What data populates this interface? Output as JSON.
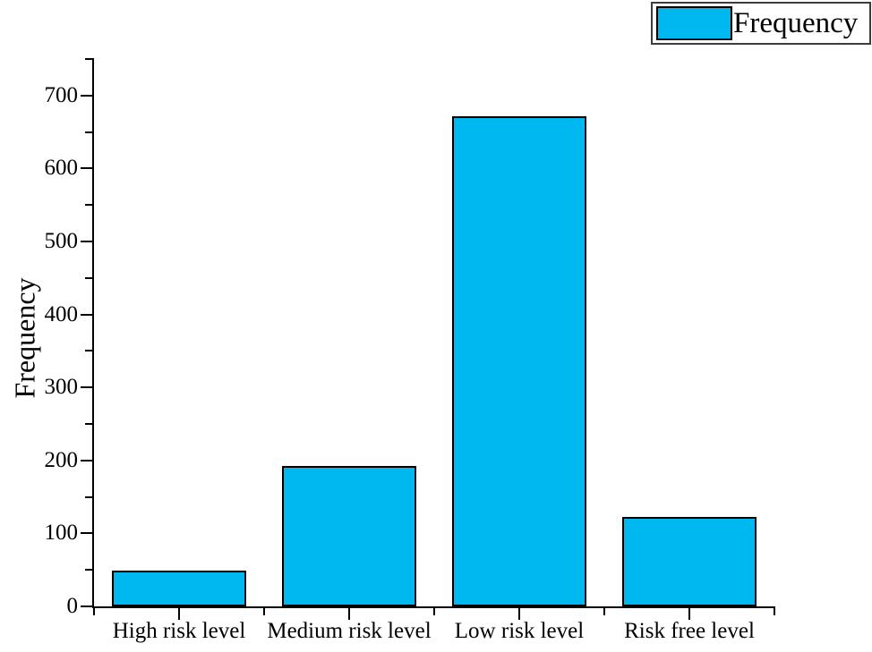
{
  "figure": {
    "background": "#ffffff"
  },
  "legend": {
    "position": "top-right",
    "entries": [
      {
        "label": "Frequency",
        "swatch_color": "#00B8F0"
      }
    ]
  },
  "chart_data": {
    "type": "bar",
    "title": "",
    "categories": [
      "High risk level",
      "Medium risk level",
      "Low risk level",
      "Risk free level"
    ],
    "series": [
      {
        "name": "Frequency",
        "values": [
          49,
          192,
          671,
          123
        ]
      }
    ],
    "xlabel": "",
    "ylabel": "Frequency",
    "ylim": [
      0,
      750
    ],
    "ytick_major_step": 100,
    "ytick_minor_step": 50,
    "ytick_labels": [
      "0",
      "100",
      "200",
      "300",
      "400",
      "500",
      "600",
      "700"
    ],
    "grid": false,
    "legend_position": "top-right",
    "bar_fill": "#00B8F0",
    "bar_border": "#000000",
    "axis_color": "#000000"
  }
}
